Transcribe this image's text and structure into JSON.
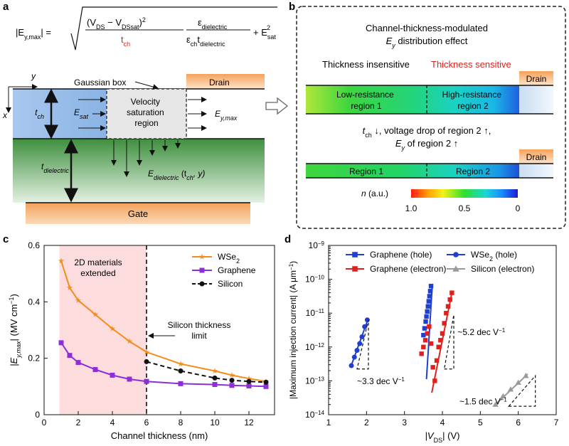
{
  "panel_a": {
    "label": "a",
    "equation": {
      "lhs": "|E",
      "lhs_sub": "y,max",
      "lhs_close": "| =",
      "numerator": "(V",
      "num_sub1": "DS",
      "num_mid": " − V",
      "num_sub2": "DSsat",
      "num_close": ")",
      "num_sq": "2",
      "denominator": "t",
      "den_sub": "ch",
      "eps_num": "ε",
      "eps_num_sub": "dielectric",
      "eps_den1": "ε",
      "eps_den1_sub": "ch",
      "eps_den2": "t",
      "eps_den2_sub": "dielectric",
      "plus": "+ E",
      "plus_sub": "sat",
      "plus_sq": "2"
    },
    "y_axis": "y",
    "x_axis": "x",
    "gaussian_box": "Gaussian box",
    "drain": "Drain",
    "t_ch": "t",
    "t_ch_sub": "ch",
    "e_sat": "E",
    "e_sat_sub": "sat",
    "velocity_region": [
      "Velocity",
      "saturation",
      "region"
    ],
    "e_ymax": "E",
    "e_ymax_sub": "y,max",
    "t_dielectric": "t",
    "t_dielectric_sub": "dielectric",
    "e_dielectric": "E",
    "e_dielectric_sub": "dielectric",
    "e_dielectric_args": " (t",
    "e_dielectric_args_sub": "ch",
    "e_dielectric_args_end": ", y)",
    "gate": "Gate"
  },
  "panel_b": {
    "label": "b",
    "title_line1": "Channel-thickness-modulated",
    "title_line2_e": "E",
    "title_line2_sub": "y",
    "title_line2_rest": " distribution effect",
    "thickness_insensitive": "Thickness insensitive",
    "thickness_sensitive": "Thickness sensitive",
    "drain_top": "Drain",
    "low_res": [
      "Low-resistance",
      "region 1"
    ],
    "high_res": [
      "High-resistance",
      "region 2"
    ],
    "mid_line1_t": "t",
    "mid_line1_sub": "ch",
    "mid_line1_rest": " ↓, voltage drop of region 2 ↑,",
    "mid_line2_e": "E",
    "mid_line2_sub": "y",
    "mid_line2_rest": " of region 2 ↑",
    "drain_bottom": "Drain",
    "region1": "Region 1",
    "region2": "Region 2",
    "colorbar_label": "n",
    "colorbar_unit": " (a.u.)",
    "colorbar_ticks": [
      "1.0",
      "0.5",
      "0"
    ]
  },
  "panel_c": {
    "label": "c",
    "shaded_text": [
      "2D materials",
      "extended"
    ],
    "limit_text": [
      "Silicon thickness",
      "limit"
    ],
    "chart_data": {
      "type": "line",
      "xlabel": "Channel thickness (nm)",
      "ylabel_prefix": "|E",
      "ylabel_sub": "y,max",
      "ylabel_suffix": "| (MV cm",
      "ylabel_sup": "−1",
      "ylabel_end": ")",
      "xlim": [
        0,
        13.5
      ],
      "ylim": [
        0,
        0.6
      ],
      "xticks": [
        "0",
        "2",
        "4",
        "6",
        "8",
        "10",
        "12"
      ],
      "yticks": [
        "0",
        "0.2",
        "0.4",
        "0.6"
      ],
      "shaded_range": [
        0.9,
        6
      ],
      "limit_x": 6,
      "series": [
        {
          "name": "WSe",
          "name_sub": "2",
          "color": "#f28c1e",
          "marker": "star",
          "x": [
            1,
            1.5,
            2,
            3,
            4,
            5,
            6,
            8,
            10,
            11,
            12,
            13
          ],
          "y": [
            0.545,
            0.45,
            0.405,
            0.355,
            0.305,
            0.26,
            0.222,
            0.18,
            0.155,
            0.14,
            0.128,
            0.118
          ]
        },
        {
          "name": "Graphene",
          "name_sub": "",
          "color": "#8c2fd6",
          "marker": "square",
          "x": [
            1,
            1.5,
            2,
            3,
            4,
            5,
            6,
            8,
            10,
            11,
            12,
            13
          ],
          "y": [
            0.255,
            0.21,
            0.185,
            0.16,
            0.14,
            0.126,
            0.118,
            0.11,
            0.107,
            0.104,
            0.102,
            0.1
          ]
        },
        {
          "name": "Silicon",
          "name_sub": "",
          "color": "#111111",
          "marker": "circle",
          "dashed": true,
          "x": [
            6,
            8,
            10,
            11,
            12,
            13
          ],
          "y": [
            0.188,
            0.155,
            0.13,
            0.122,
            0.118,
            0.115
          ]
        }
      ]
    }
  },
  "panel_d": {
    "label": "d",
    "slope1": "~3.3 dec V",
    "slope2": "~5.2 dec V",
    "slope3": "~1.5 dec V",
    "slope_sup": "−1",
    "chart_data": {
      "type": "scatter",
      "xlabel_prefix": "|V",
      "xlabel_sub": "DS",
      "xlabel_suffix": "| (V)",
      "ylabel_prefix": "|Maximum injection current| (A μm",
      "ylabel_sup": "−1",
      "ylabel_end": ")",
      "xlim": [
        1,
        7
      ],
      "ylim_log10": [
        -14,
        -9
      ],
      "xticks": [
        "1",
        "2",
        "3",
        "4",
        "5",
        "6",
        "7"
      ],
      "yticks": [
        "10",
        "10",
        "10",
        "10",
        "10",
        "10"
      ],
      "ytick_exps": [
        "−14",
        "−13",
        "−12",
        "−11",
        "−10",
        "−9"
      ],
      "series": [
        {
          "name": "Graphene (hole)",
          "color": "#1f3fd1",
          "marker": "square",
          "x": [
            3.5,
            3.53,
            3.56,
            3.58,
            3.6,
            3.62,
            3.64,
            3.66,
            3.68,
            3.7
          ],
          "log10y": [
            -11.65,
            -11.45,
            -11.25,
            -11.1,
            -10.95,
            -10.8,
            -10.65,
            -10.5,
            -10.35,
            -10.2
          ]
        },
        {
          "name": "Graphene (electron)",
          "color": "#e0201c",
          "marker": "square",
          "x": [
            3.45,
            3.5,
            3.55,
            3.6,
            3.65,
            3.7,
            3.75,
            3.8,
            3.85,
            3.9,
            3.95,
            4.0,
            4.05,
            4.1,
            4.15,
            4.2,
            4.25
          ],
          "log10y": [
            -12.2,
            -12.0,
            -11.8,
            -11.6,
            -11.4,
            -11.9,
            -12.6,
            -13.0,
            -12.4,
            -12.0,
            -11.8,
            -11.6,
            -11.3,
            -11.0,
            -10.8,
            -10.6,
            -10.4
          ]
        },
        {
          "name": "WSe",
          "name_sub": "2",
          "name_suffix": " (hole)",
          "color": "#1f3fd1",
          "marker": "circle",
          "x": [
            1.6,
            1.68,
            1.75,
            1.82,
            1.88,
            1.95,
            2.02
          ],
          "log10y": [
            -12.55,
            -12.3,
            -12.1,
            -11.9,
            -11.7,
            -11.4,
            -11.2
          ]
        },
        {
          "name": "Silicon (electron)",
          "color": "#9a9a9a",
          "marker": "triangle",
          "x": [
            5.4,
            5.6,
            5.8,
            6.0,
            6.2
          ],
          "log10y": [
            -13.7,
            -13.45,
            -13.25,
            -13.05,
            -12.85
          ]
        }
      ],
      "fit_lines": [
        {
          "color": "#1f3fd1",
          "x": [
            3.58,
            3.73
          ],
          "log10y": [
            -12.95,
            -10.25
          ]
        },
        {
          "color": "#e0201c",
          "x": [
            3.72,
            4.25
          ],
          "log10y": [
            -13.35,
            -10.4
          ]
        },
        {
          "color": "#1f3fd1",
          "x": [
            1.58,
            2.05
          ],
          "log10y": [
            -12.6,
            -11.15
          ]
        },
        {
          "color": "#9a9a9a",
          "x": [
            5.35,
            6.25
          ],
          "log10y": [
            -13.75,
            -12.8
          ]
        }
      ]
    }
  }
}
